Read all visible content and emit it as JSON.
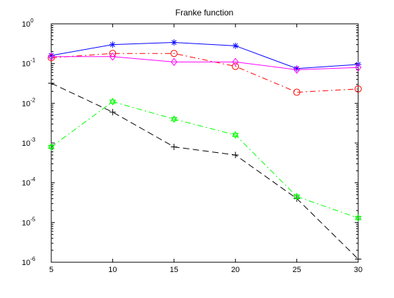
{
  "chart_data": {
    "type": "line",
    "title": "Franke function",
    "xlabel": "",
    "ylabel": "",
    "x": [
      5,
      10,
      15,
      20,
      25,
      30
    ],
    "xlim": [
      5,
      30
    ],
    "xticks": [
      5,
      10,
      15,
      20,
      25,
      30
    ],
    "xtick_labels": [
      "5",
      "10",
      "15",
      "20",
      "25",
      "30"
    ],
    "yscale": "log",
    "ylim": [
      1e-06,
      1
    ],
    "yticks": [
      {
        "value": 1,
        "base": "10",
        "exp": "0"
      },
      {
        "value": 0.1,
        "base": "10",
        "exp": "-1"
      },
      {
        "value": 0.01,
        "base": "10",
        "exp": "-2"
      },
      {
        "value": 0.001,
        "base": "10",
        "exp": "-3"
      },
      {
        "value": 0.0001,
        "base": "10",
        "exp": "-4"
      },
      {
        "value": 1e-05,
        "base": "10",
        "exp": "-5"
      },
      {
        "value": 1e-06,
        "base": "10",
        "exp": "-6"
      }
    ],
    "grid": false,
    "legend": "none",
    "series": [
      {
        "values": [
          0.16,
          0.3,
          0.34,
          0.28,
          0.075,
          0.095
        ],
        "color": "#0000ff",
        "linestyle": "solid",
        "marker": "asterisk"
      },
      {
        "values": [
          0.14,
          0.18,
          0.18,
          0.085,
          0.019,
          0.023
        ],
        "color": "#ff0000",
        "linestyle": "dashdot",
        "marker": "circle"
      },
      {
        "values": [
          0.15,
          0.15,
          0.11,
          0.11,
          0.07,
          0.08
        ],
        "color": "#ff00ff",
        "linestyle": "solid",
        "marker": "diamond"
      },
      {
        "values": [
          0.032,
          0.006,
          0.0008,
          0.0005,
          4e-05,
          1.2e-06
        ],
        "color": "#000000",
        "linestyle": "dashed",
        "marker": "plus"
      },
      {
        "values": [
          0.0008,
          0.011,
          0.004,
          0.0016,
          4.5e-05,
          1.3e-05
        ],
        "color": "#00ff00",
        "linestyle": "dashdot",
        "marker": "hexagram"
      }
    ]
  }
}
